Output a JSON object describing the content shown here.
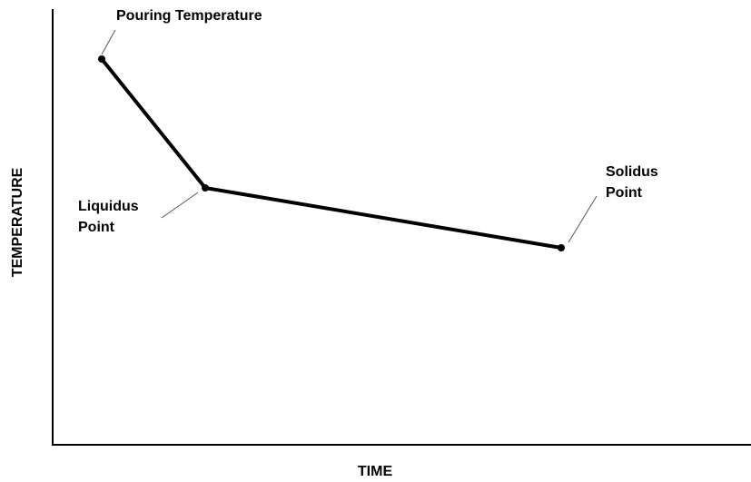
{
  "axes": {
    "x_label": "TIME",
    "y_label": "TEMPERATURE"
  },
  "points": [
    {
      "label": [
        "Pouring Temperature"
      ]
    },
    {
      "label": [
        "Liquidus",
        "Point"
      ]
    },
    {
      "label": [
        "Solidus",
        "Point"
      ]
    }
  ]
}
